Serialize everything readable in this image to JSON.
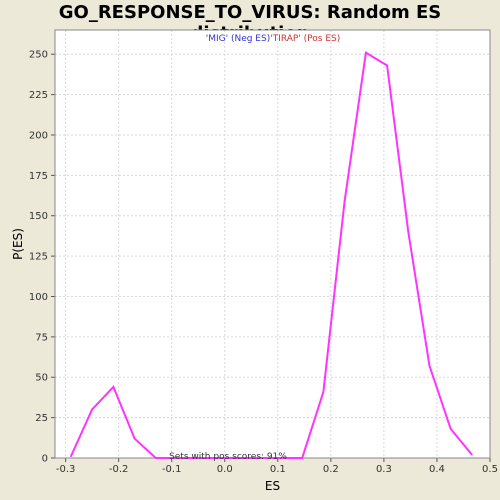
{
  "chart_data": {
    "type": "line",
    "title": "GO_RESPONSE_TO_VIRUS: Random ES distribution",
    "xlabel": "ES",
    "ylabel": "P(ES)",
    "xlim": [
      -0.32,
      0.5
    ],
    "ylim": [
      0,
      265
    ],
    "x_ticks": [
      -0.3,
      -0.2,
      -0.1,
      0.0,
      0.1,
      0.2,
      0.3,
      0.4,
      0.5
    ],
    "x_tick_labels": [
      "-0.3",
      "-0.2",
      "-0.1",
      "0.0",
      "0.1",
      "0.2",
      "0.3",
      "0.4",
      "0.5"
    ],
    "y_ticks": [
      0,
      25,
      50,
      75,
      100,
      125,
      150,
      175,
      200,
      225,
      250
    ],
    "y_tick_labels": [
      "0",
      "25",
      "50",
      "75",
      "100",
      "125",
      "150",
      "175",
      "200",
      "225",
      "250"
    ],
    "grid": true,
    "series": [
      {
        "color": "#ff33ff",
        "x": [
          -0.29,
          -0.25,
          -0.21,
          -0.17,
          -0.13,
          -0.09,
          -0.05,
          -0.01,
          0.03,
          0.07,
          0.11,
          0.146,
          0.186,
          0.226,
          0.266,
          0.306,
          0.346,
          0.386,
          0.426,
          0.466
        ],
        "y": [
          1,
          30,
          44,
          12,
          0,
          0,
          0,
          0,
          0,
          0,
          0,
          0,
          41,
          159,
          251,
          243,
          140,
          57,
          18,
          2
        ]
      }
    ],
    "legend": {
      "neg_label": "'MIG' (Neg ES)",
      "pos_label": "'TIRAP' (Pos ES)",
      "neg_color": "#3333cc",
      "pos_color": "#cc3333",
      "placement": "top-center"
    },
    "annotation": "Sets with pos scores: 91%",
    "colors": {
      "background": "#ece9d8",
      "plot_background": "#ffffff",
      "grid": "#d8d8d8",
      "line": "#ff33ff"
    }
  }
}
